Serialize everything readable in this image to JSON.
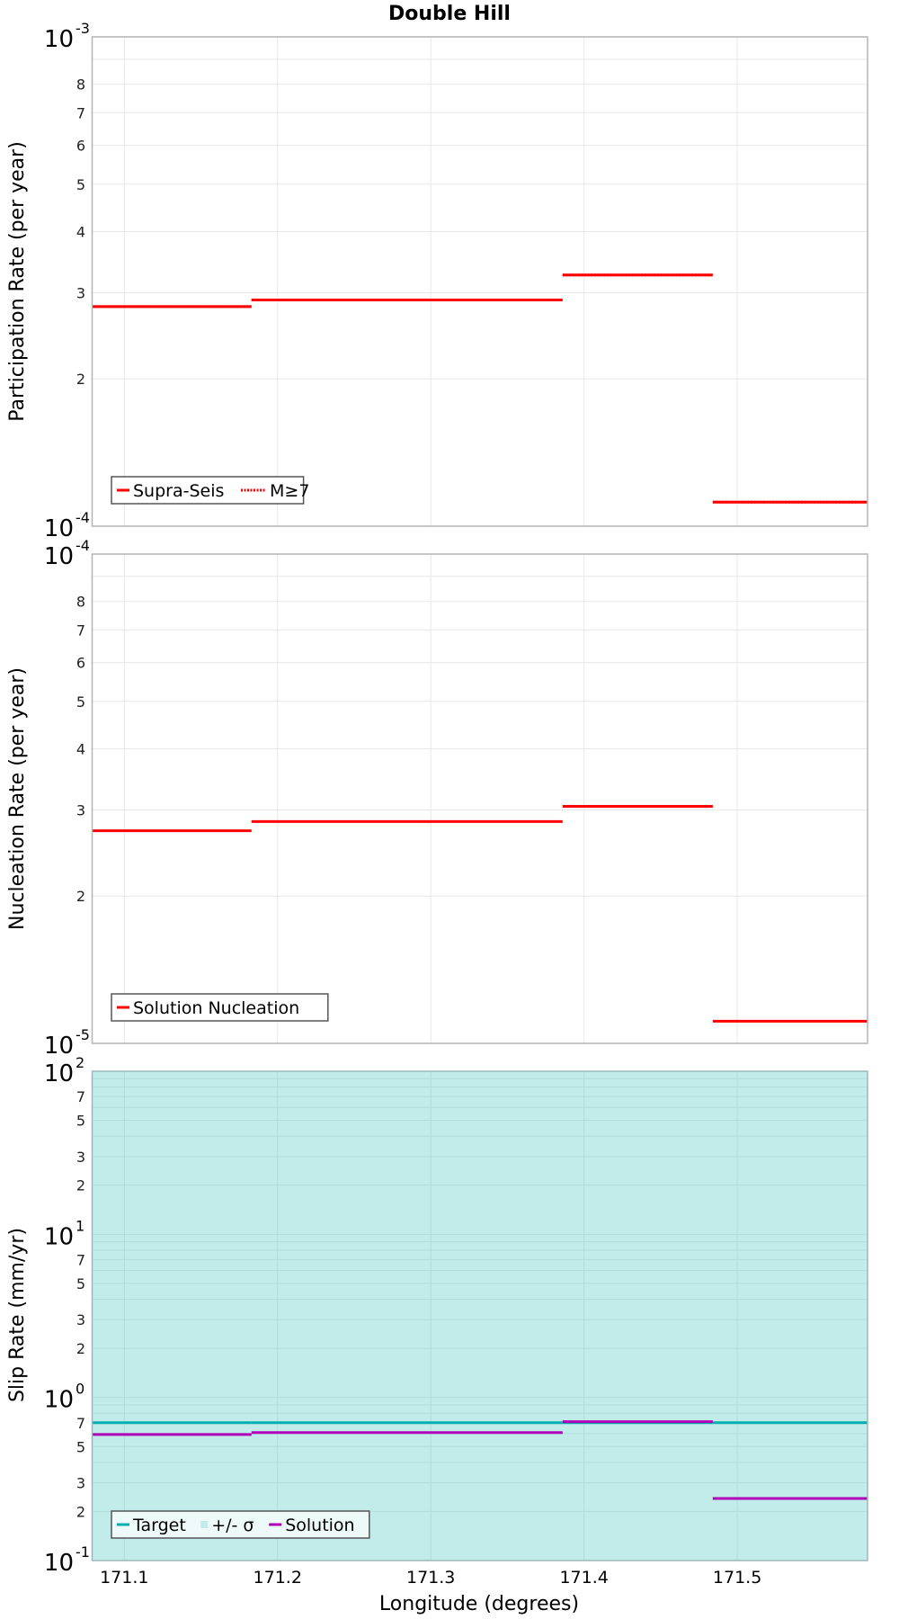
{
  "figure": {
    "title": "Double Hill",
    "xlabel": "Longitude (degrees)",
    "xlim": [
      171.079,
      171.585
    ],
    "xticks": [
      171.1,
      171.2,
      171.3,
      171.4,
      171.5
    ],
    "xtick_labels": [
      "171.1",
      "171.2",
      "171.3",
      "171.4",
      "171.5"
    ]
  },
  "colors": {
    "solution_red": "#ff0000",
    "target_cyan": "#00b0b0",
    "sigma_fill": "#c2ecea",
    "solution_magenta": "#b000b8",
    "grid": "#e8e8e8",
    "frame": "#b4b4b4"
  },
  "chart_data": [
    {
      "type": "line",
      "title": "Double Hill",
      "xlabel": "Longitude (degrees)",
      "ylabel": "Participation Rate (per year)",
      "yscale": "log",
      "ylim": [
        0.0001,
        0.001
      ],
      "ytick_major": [
        {
          "value": 0.001,
          "label": "10",
          "exp": "-3"
        },
        {
          "value": 0.0001,
          "label": "10",
          "exp": "-4"
        }
      ],
      "ytick_minor": [
        "2",
        "3",
        "4",
        "5",
        "6",
        "7",
        "8"
      ],
      "legend": [
        {
          "label": "Supra-Seis",
          "style": "solid"
        },
        {
          "label": "M≥7",
          "style": "dotted"
        }
      ],
      "series": [
        {
          "name": "Supra-Seis",
          "style": "solid",
          "segments": [
            {
              "x0": 171.079,
              "x1": 171.183,
              "y": 0.000281
            },
            {
              "x0": 171.183,
              "x1": 171.386,
              "y": 0.00029
            },
            {
              "x0": 171.386,
              "x1": 171.484,
              "y": 0.000326
            },
            {
              "x0": 171.484,
              "x1": 171.585,
              "y": 0.000112
            }
          ]
        },
        {
          "name": "M≥7",
          "style": "dotted",
          "segments": [
            {
              "x0": 171.079,
              "x1": 171.183,
              "y": 0.000281
            },
            {
              "x0": 171.183,
              "x1": 171.386,
              "y": 0.00029
            },
            {
              "x0": 171.386,
              "x1": 171.484,
              "y": 0.000326
            },
            {
              "x0": 171.484,
              "x1": 171.585,
              "y": 0.000112
            }
          ]
        }
      ]
    },
    {
      "type": "line",
      "ylabel": "Nucleation Rate (per year)",
      "yscale": "log",
      "ylim": [
        1e-05,
        0.0001
      ],
      "ytick_major": [
        {
          "value": 0.0001,
          "label": "10",
          "exp": "-4"
        },
        {
          "value": 1e-05,
          "label": "10",
          "exp": "-5"
        }
      ],
      "ytick_minor": [
        "2",
        "3",
        "4",
        "5",
        "6",
        "7",
        "8"
      ],
      "legend": [
        {
          "label": "Solution Nucleation",
          "style": "solid"
        }
      ],
      "series": [
        {
          "name": "Solution Nucleation",
          "style": "solid",
          "segments": [
            {
              "x0": 171.079,
              "x1": 171.183,
              "y": 2.72e-05
            },
            {
              "x0": 171.183,
              "x1": 171.386,
              "y": 2.84e-05
            },
            {
              "x0": 171.386,
              "x1": 171.484,
              "y": 3.05e-05
            },
            {
              "x0": 171.484,
              "x1": 171.585,
              "y": 1.11e-05
            }
          ]
        }
      ]
    },
    {
      "type": "line",
      "ylabel": "Slip Rate (mm/yr)",
      "yscale": "log",
      "ylim": [
        0.1,
        100
      ],
      "ytick_major": [
        {
          "value": 100,
          "label": "10",
          "exp": "2"
        },
        {
          "value": 10,
          "label": "10",
          "exp": "1"
        },
        {
          "value": 1,
          "label": "10",
          "exp": "0"
        },
        {
          "value": 0.1,
          "label": "10",
          "exp": "-1"
        }
      ],
      "ytick_minor": [
        "2",
        "3",
        "5",
        "7"
      ],
      "legend": [
        {
          "label": "Target",
          "style": "solid"
        },
        {
          "label": "+/- σ",
          "style": "fill"
        },
        {
          "label": "Solution",
          "style": "solid"
        }
      ],
      "series": [
        {
          "name": "+/- σ",
          "style": "fill",
          "y_low": 0.1,
          "y_high": 100
        },
        {
          "name": "Target",
          "style": "solid",
          "segments": [
            {
              "x0": 171.079,
              "x1": 171.183,
              "y": 0.7
            },
            {
              "x0": 171.183,
              "x1": 171.386,
              "y": 0.7
            },
            {
              "x0": 171.386,
              "x1": 171.484,
              "y": 0.7
            },
            {
              "x0": 171.484,
              "x1": 171.585,
              "y": 0.7
            }
          ]
        },
        {
          "name": "Solution",
          "style": "solid",
          "segments": [
            {
              "x0": 171.079,
              "x1": 171.183,
              "y": 0.593
            },
            {
              "x0": 171.183,
              "x1": 171.386,
              "y": 0.609
            },
            {
              "x0": 171.386,
              "x1": 171.484,
              "y": 0.71
            },
            {
              "x0": 171.484,
              "x1": 171.585,
              "y": 0.24
            }
          ]
        }
      ]
    }
  ]
}
